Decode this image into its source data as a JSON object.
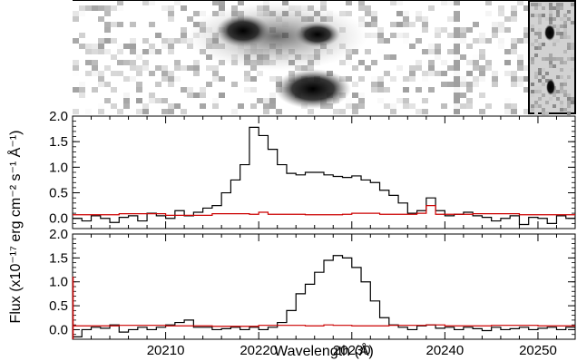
{
  "chart_data": [
    {
      "type": "heatmap",
      "description_visible": "2D spectrum image (grayscale) with inset postage stamp",
      "colormap": "gray_r"
    },
    {
      "type": "line",
      "step": true,
      "xlim": [
        20200,
        20254
      ],
      "ylim": [
        -0.2,
        2.0
      ],
      "yticks": [
        "0.0",
        "0.5",
        "1.0",
        "1.5",
        "2.0"
      ],
      "series": [
        {
          "color": "#000000",
          "x": [
            20200,
            20201,
            20202,
            20203,
            20204,
            20205,
            20206,
            20207,
            20208,
            20209,
            20210,
            20211,
            20212,
            20213,
            20214,
            20215,
            20216,
            20217,
            20218,
            20219,
            20220,
            20221,
            20222,
            20223,
            20224,
            20225,
            20226,
            20227,
            20228,
            20229,
            20230,
            20231,
            20232,
            20233,
            20234,
            20235,
            20236,
            20237,
            20238,
            20239,
            20240,
            20241,
            20242,
            20243,
            20244,
            20245,
            20246,
            20247,
            20248,
            20249,
            20250,
            20251,
            20252,
            20253,
            20254
          ],
          "y": [
            0.0,
            -0.05,
            0.05,
            0.0,
            -0.08,
            0.02,
            0.05,
            -0.05,
            0.1,
            0.05,
            0.0,
            0.15,
            0.05,
            0.12,
            0.2,
            0.25,
            0.5,
            0.75,
            1.05,
            1.78,
            1.62,
            1.35,
            1.05,
            0.88,
            0.85,
            0.9,
            0.9,
            0.85,
            0.82,
            0.8,
            0.83,
            0.75,
            0.7,
            0.55,
            0.45,
            0.3,
            0.1,
            0.15,
            0.4,
            0.15,
            0.05,
            0.08,
            0.12,
            0.05,
            0.02,
            -0.05,
            0.0,
            0.05,
            -0.12,
            0.02,
            0.0,
            -0.1,
            0.05,
            0.0,
            0.05
          ]
        },
        {
          "color": "#cc0000",
          "x": [
            20200,
            20205,
            20210,
            20215,
            20219,
            20220,
            20221,
            20225,
            20229,
            20230,
            20233,
            20237,
            20238,
            20239,
            20243,
            20248,
            20254
          ],
          "y": [
            0.07,
            0.09,
            0.06,
            0.09,
            0.08,
            0.12,
            0.08,
            0.07,
            0.08,
            0.1,
            0.08,
            0.1,
            0.25,
            0.08,
            0.09,
            0.07,
            0.09
          ]
        }
      ]
    },
    {
      "type": "line",
      "step": true,
      "xlim": [
        20200,
        20254
      ],
      "ylim": [
        -0.2,
        2.0
      ],
      "yticks": [
        "0.0",
        "0.5",
        "1.0",
        "1.5",
        "2.0"
      ],
      "xticks": [
        "20210",
        "20220",
        "20230",
        "20240",
        "20250"
      ],
      "xlabel": "Wavelength (Å)",
      "series": [
        {
          "color": "#000000",
          "x": [
            20200,
            20201,
            20202,
            20203,
            20204,
            20205,
            20206,
            20207,
            20208,
            20209,
            20210,
            20211,
            20212,
            20213,
            20214,
            20215,
            20216,
            20217,
            20218,
            20219,
            20220,
            20221,
            20222,
            20223,
            20224,
            20225,
            20226,
            20227,
            20228,
            20229,
            20230,
            20231,
            20232,
            20233,
            20234,
            20235,
            20236,
            20237,
            20238,
            20239,
            20240,
            20241,
            20242,
            20243,
            20244,
            20245,
            20246,
            20247,
            20248,
            20249,
            20250,
            20251,
            20252,
            20253,
            20254
          ],
          "y": [
            -0.15,
            0.0,
            0.05,
            0.03,
            0.1,
            -0.05,
            0.0,
            0.05,
            0.0,
            0.05,
            0.1,
            0.15,
            0.2,
            0.05,
            0.05,
            0.0,
            0.02,
            0.05,
            0.0,
            0.05,
            0.0,
            0.05,
            0.15,
            0.4,
            0.75,
            0.95,
            1.2,
            1.45,
            1.55,
            1.5,
            1.3,
            1.0,
            0.6,
            0.25,
            0.1,
            0.05,
            0.0,
            0.08,
            0.1,
            0.03,
            0.05,
            0.0,
            0.05,
            0.02,
            -0.02,
            0.05,
            0.0,
            0.02,
            0.05,
            0.0,
            0.03,
            0.05,
            0.0,
            0.05,
            0.02
          ]
        },
        {
          "color": "#cc0000",
          "x": [
            20200,
            20205,
            20210,
            20215,
            20220,
            20225,
            20227,
            20228,
            20230,
            20234,
            20238,
            20240,
            20245,
            20250,
            20254
          ],
          "y": [
            0.08,
            0.09,
            0.08,
            0.07,
            0.09,
            0.08,
            0.1,
            0.09,
            0.08,
            0.09,
            0.1,
            0.08,
            0.09,
            0.08,
            0.09
          ]
        }
      ]
    }
  ],
  "shared_ylabel": "Flux (x10⁻¹⁷ erg cm⁻² s⁻¹ Å⁻¹)"
}
